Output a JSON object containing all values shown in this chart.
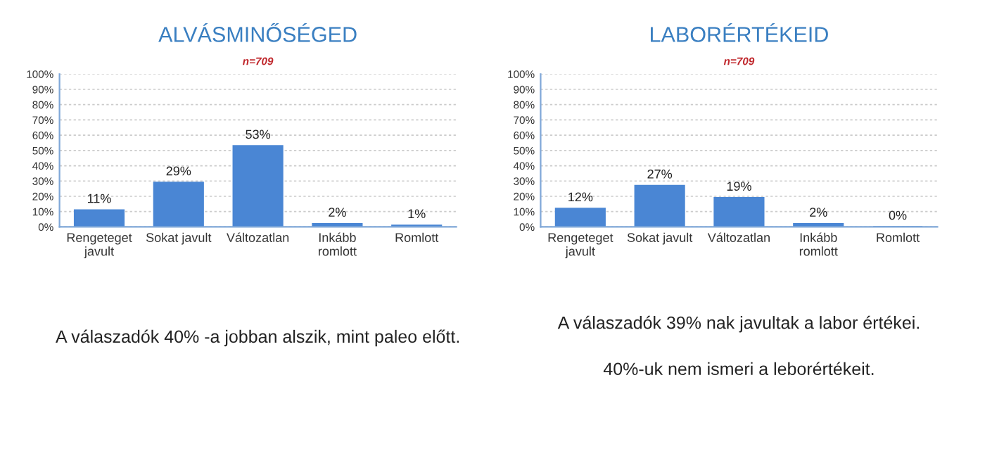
{
  "chart_data": [
    {
      "type": "bar",
      "title": "ALVÁSMINŐSÉGED",
      "subtitle": "n=709",
      "categories": [
        "Rengeteget\njavult",
        "Sokat javult",
        "Változatlan",
        "Inkább\nromlott",
        "Romlott"
      ],
      "values": [
        11,
        29,
        53,
        2,
        1
      ],
      "color": "#4a86d4",
      "ylim": [
        0,
        100
      ],
      "yticks": [
        {
          "value": 0,
          "label": "0%"
        },
        {
          "value": 10,
          "label": "10%"
        },
        {
          "value": 20,
          "label": "20%"
        },
        {
          "value": 30,
          "label": "30%"
        },
        {
          "value": 40,
          "label": "40%"
        },
        {
          "value": 50,
          "label": "50%"
        },
        {
          "value": 60,
          "label": "60%"
        },
        {
          "value": 70,
          "label": "70%"
        },
        {
          "value": 80,
          "label": "80%"
        },
        {
          "value": 90,
          "label": "90%"
        },
        {
          "value": 100,
          "label": "100%"
        }
      ],
      "grid": "y",
      "value_labels": [
        "11%",
        "29%",
        "53%",
        "2%",
        "1%"
      ],
      "annotations": [
        "A válaszadók 40% -a jobban alszik, mint paleo előtt."
      ]
    },
    {
      "type": "bar",
      "title": "LABORÉRTÉKEID",
      "subtitle": "n=709",
      "categories": [
        "Rengeteget\njavult",
        "Sokat javult",
        "Változatlan",
        "Inkább\nromlott",
        "Romlott"
      ],
      "values": [
        12,
        27,
        19,
        2,
        0
      ],
      "color": "#4a86d4",
      "ylim": [
        0,
        100
      ],
      "yticks": [
        {
          "value": 0,
          "label": "0%"
        },
        {
          "value": 10,
          "label": "10%"
        },
        {
          "value": 20,
          "label": "20%"
        },
        {
          "value": 30,
          "label": "30%"
        },
        {
          "value": 40,
          "label": "40%"
        },
        {
          "value": 50,
          "label": "50%"
        },
        {
          "value": 60,
          "label": "60%"
        },
        {
          "value": 70,
          "label": "70%"
        },
        {
          "value": 80,
          "label": "80%"
        },
        {
          "value": 90,
          "label": "90%"
        },
        {
          "value": 100,
          "label": "100%"
        }
      ],
      "grid": "y",
      "value_labels": [
        "12%",
        "27%",
        "19%",
        "2%",
        "0%"
      ],
      "annotations": [
        "A válaszadók 39% nak javultak a labor értékei.",
        "40%-uk nem ismeri a leborértékeit."
      ]
    }
  ]
}
